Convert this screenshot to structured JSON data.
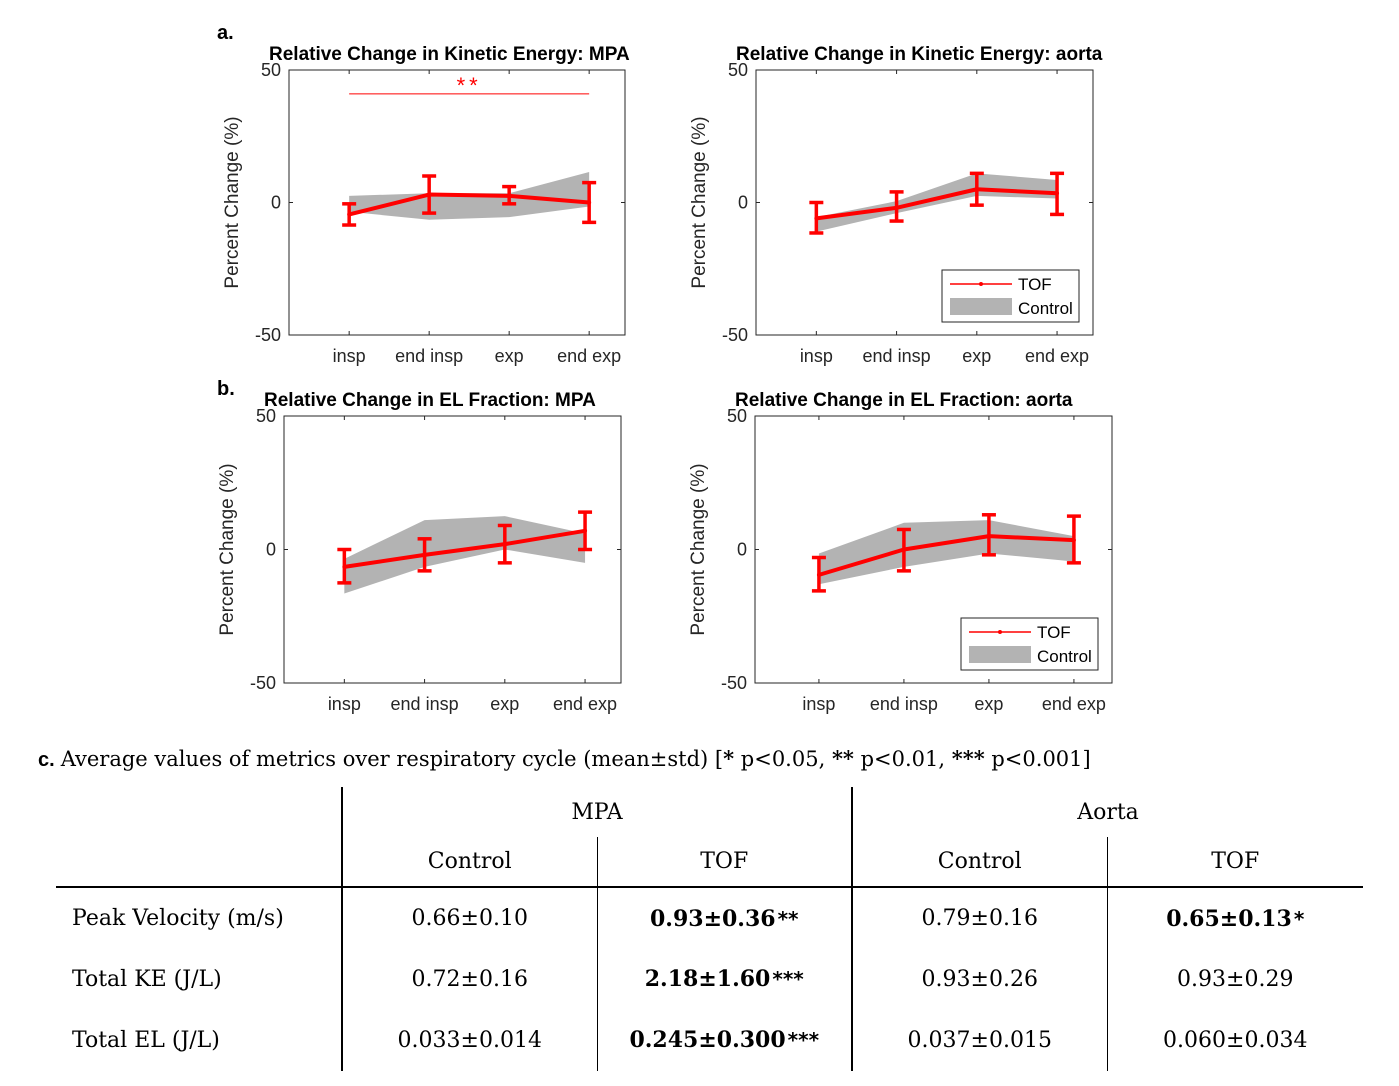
{
  "colors": {
    "tof": "#ff0000",
    "control_band": "#b3b3b3",
    "axis": "#262626"
  },
  "panels": {
    "a": "a.",
    "b": "b.",
    "c": "c."
  },
  "chart_data": [
    {
      "type": "line",
      "panel": "a",
      "title": "Relative Change in Kinetic Energy: MPA",
      "ylabel": "Percent Change (%)",
      "xlabel": "",
      "categories": [
        "insp",
        "end insp",
        "exp",
        "end exp"
      ],
      "ylim": [
        -50,
        50
      ],
      "yticks": [
        -50,
        0,
        50
      ],
      "series": [
        {
          "name": "TOF",
          "kind": "line_errorbar",
          "values": [
            -4.5,
            3,
            2.5,
            0
          ],
          "error_low": [
            -8.5,
            -4,
            -0.5,
            -7.5
          ],
          "error_high": [
            -0.5,
            10,
            6,
            7.5
          ]
        },
        {
          "name": "Control",
          "kind": "band",
          "lower": [
            -3.5,
            -6.5,
            -5.5,
            -1.5
          ],
          "upper": [
            2.5,
            3.5,
            3.5,
            11.5
          ]
        }
      ],
      "annotation": {
        "text": "**",
        "from": "insp",
        "to": "end exp",
        "y": 41
      },
      "legend": false
    },
    {
      "type": "line",
      "panel": "a",
      "title": "Relative Change in Kinetic Energy: aorta",
      "ylabel": "Percent Change (%)",
      "xlabel": "",
      "categories": [
        "insp",
        "end insp",
        "exp",
        "end exp"
      ],
      "ylim": [
        -50,
        50
      ],
      "yticks": [
        -50,
        0,
        50
      ],
      "series": [
        {
          "name": "TOF",
          "kind": "line_errorbar",
          "values": [
            -6,
            -2,
            5,
            3.5
          ],
          "error_low": [
            -11.5,
            -7,
            -1,
            -4.5
          ],
          "error_high": [
            0,
            4,
            11,
            11
          ]
        },
        {
          "name": "Control",
          "kind": "band",
          "lower": [
            -11,
            -4,
            2.5,
            1.5
          ],
          "upper": [
            -5.5,
            0.5,
            11,
            8.5
          ]
        }
      ],
      "legend": true,
      "legend_position": "bottom-right"
    },
    {
      "type": "line",
      "panel": "b",
      "title": "Relative Change in EL Fraction: MPA",
      "ylabel": "Percent Change (%)",
      "xlabel": "",
      "categories": [
        "insp",
        "end insp",
        "exp",
        "end exp"
      ],
      "ylim": [
        -50,
        50
      ],
      "yticks": [
        -50,
        0,
        50
      ],
      "series": [
        {
          "name": "TOF",
          "kind": "line_errorbar",
          "values": [
            -6.5,
            -2,
            2,
            7
          ],
          "error_low": [
            -12.5,
            -8,
            -5,
            0
          ],
          "error_high": [
            0,
            4,
            9,
            14
          ]
        },
        {
          "name": "Control",
          "kind": "band",
          "lower": [
            -16.5,
            -6.5,
            0,
            -5
          ],
          "upper": [
            -3.5,
            11,
            12.5,
            6
          ]
        }
      ],
      "legend": false
    },
    {
      "type": "line",
      "panel": "b",
      "title": "Relative Change in EL Fraction: aorta",
      "ylabel": "Percent Change (%)",
      "xlabel": "",
      "categories": [
        "insp",
        "end insp",
        "exp",
        "end exp"
      ],
      "ylim": [
        -50,
        50
      ],
      "yticks": [
        -50,
        0,
        50
      ],
      "series": [
        {
          "name": "TOF",
          "kind": "line_errorbar",
          "values": [
            -9.5,
            0,
            5,
            3.5
          ],
          "error_low": [
            -15.5,
            -8,
            -2,
            -5
          ],
          "error_high": [
            -3,
            7.5,
            13,
            12.5
          ]
        },
        {
          "name": "Control",
          "kind": "band",
          "lower": [
            -13,
            -6.5,
            -1.5,
            -4.5
          ],
          "upper": [
            -1.5,
            10,
            11,
            5
          ]
        }
      ],
      "legend": true,
      "legend_position": "bottom-right"
    }
  ],
  "table": {
    "caption": "Average values of metrics over respiratory cycle (mean±std) [",
    "caption_sig": [
      {
        "mark": "*",
        "text": " p<0.05, "
      },
      {
        "mark": "**",
        "text": " p<0.01, "
      },
      {
        "mark": "***",
        "text": " p<0.001]"
      }
    ],
    "groups": [
      "MPA",
      "Aorta"
    ],
    "subheaders": [
      "Control",
      "TOF",
      "Control",
      "TOF"
    ],
    "rows": [
      {
        "label": "Peak Velocity (m/s)",
        "cells": [
          {
            "value": "0.66±0.10",
            "bold": false,
            "sig": ""
          },
          {
            "value": "0.93±0.36",
            "bold": true,
            "sig": "**"
          },
          {
            "value": "0.79±0.16",
            "bold": false,
            "sig": ""
          },
          {
            "value": "0.65±0.13",
            "bold": true,
            "sig": "*"
          }
        ]
      },
      {
        "label": "Total KE (J/L)",
        "cells": [
          {
            "value": "0.72±0.16",
            "bold": false,
            "sig": ""
          },
          {
            "value": "2.18±1.60",
            "bold": true,
            "sig": "***"
          },
          {
            "value": "0.93±0.26",
            "bold": false,
            "sig": ""
          },
          {
            "value": "0.93±0.29",
            "bold": false,
            "sig": ""
          }
        ]
      },
      {
        "label": "Total EL (J/L)",
        "cells": [
          {
            "value": "0.033±0.014",
            "bold": false,
            "sig": ""
          },
          {
            "value": "0.245±0.300",
            "bold": true,
            "sig": "***"
          },
          {
            "value": "0.037±0.015",
            "bold": false,
            "sig": ""
          },
          {
            "value": "0.060±0.034",
            "bold": false,
            "sig": ""
          }
        ]
      }
    ]
  }
}
